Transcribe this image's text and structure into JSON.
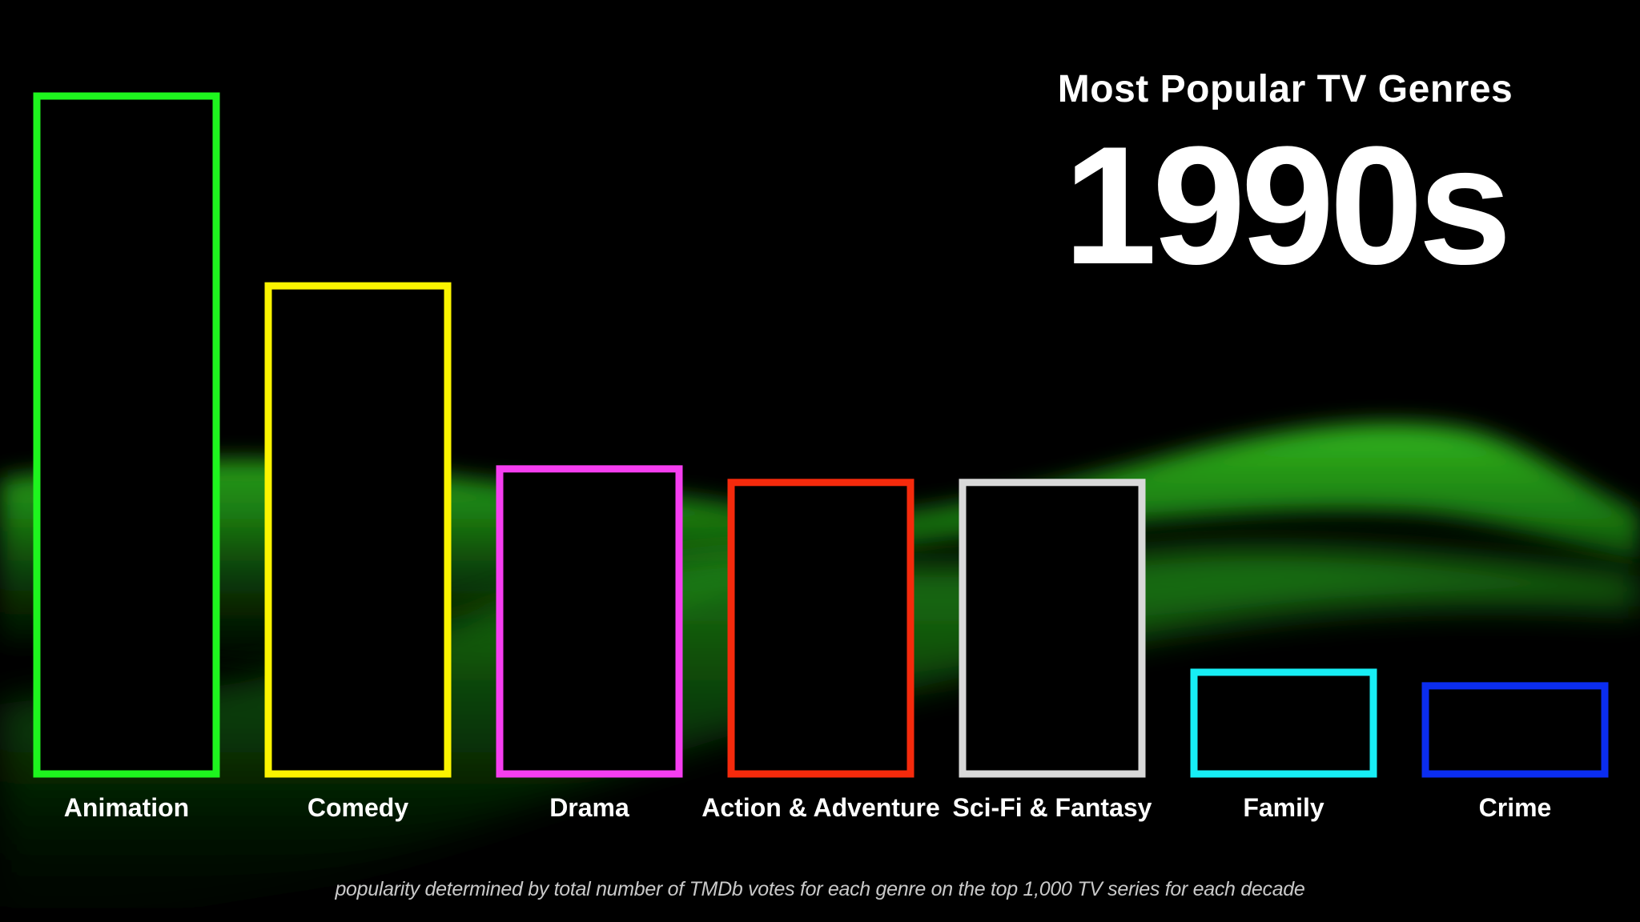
{
  "header": {
    "title": "Most Popular TV Genres",
    "decade": "1990s"
  },
  "footnote": "popularity determined by total number of TMDb votes for each genre on the top 1,000 TV series for each decade",
  "colors": {
    "background": "#000000",
    "backdrop_wave": "#1f9a14"
  },
  "chart_data": {
    "type": "bar",
    "title": "Most Popular TV Genres",
    "subtitle": "1990s",
    "xlabel": "",
    "ylabel": "",
    "grid": false,
    "categories": [
      "Animation",
      "Comedy",
      "Drama",
      "Action & Adventure",
      "Sci-Fi & Fantasy",
      "Family",
      "Crime"
    ],
    "values": [
      100,
      72,
      45,
      43,
      43,
      15,
      13
    ],
    "colors": [
      "#1ef51e",
      "#fbf400",
      "#f53ef0",
      "#f52a0c",
      "#d9d9d9",
      "#17eef5",
      "#0b2df0"
    ],
    "ylim": [
      0,
      100
    ]
  }
}
